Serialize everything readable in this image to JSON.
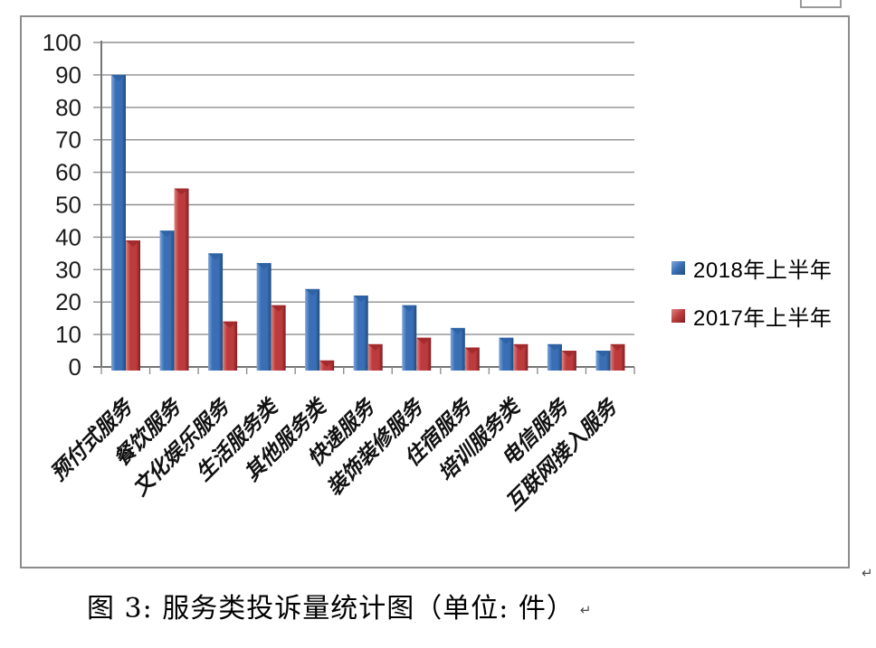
{
  "chart_data": {
    "type": "bar",
    "title": "",
    "xlabel": "",
    "ylabel": "",
    "categories": [
      "预付式服务",
      "餐饮服务",
      "文化娱乐服务",
      "生活服务类",
      "其他服务类",
      "快递服务",
      "装饰装修服务",
      "住宿服务",
      "培训服务类",
      "电信服务",
      "互联网接入服务"
    ],
    "series": [
      {
        "name": "2018年上半年",
        "color": "#3A6FB5",
        "color_light": "#7FA6D9",
        "color_dark": "#1E4B7C",
        "cap_color": "#2E63A6",
        "values": [
          90,
          42,
          35,
          32,
          24,
          22,
          19,
          12,
          9,
          7,
          5
        ]
      },
      {
        "name": "2017年上半年",
        "color": "#BE3B3D",
        "color_light": "#D98784",
        "color_dark": "#7C1F22",
        "cap_color": "#A32B2E",
        "values": [
          39,
          55,
          14,
          19,
          2,
          7,
          9,
          6,
          7,
          5,
          7
        ]
      }
    ],
    "ylim": [
      0,
      100
    ],
    "yticks": [
      0,
      10,
      20,
      30,
      40,
      50,
      60,
      70,
      80,
      90,
      100
    ],
    "grid": "horizontal",
    "legend_position": "right",
    "gridline_color": "#8f8f8f",
    "axis_color": "#757575",
    "tick_label_color": "#1c1c1c"
  },
  "caption": {
    "text": "图 3: 服务类投诉量统计图（单位: 件）",
    "return_mark": "↵"
  },
  "marks": {
    "frame_return_mark": "↵"
  }
}
